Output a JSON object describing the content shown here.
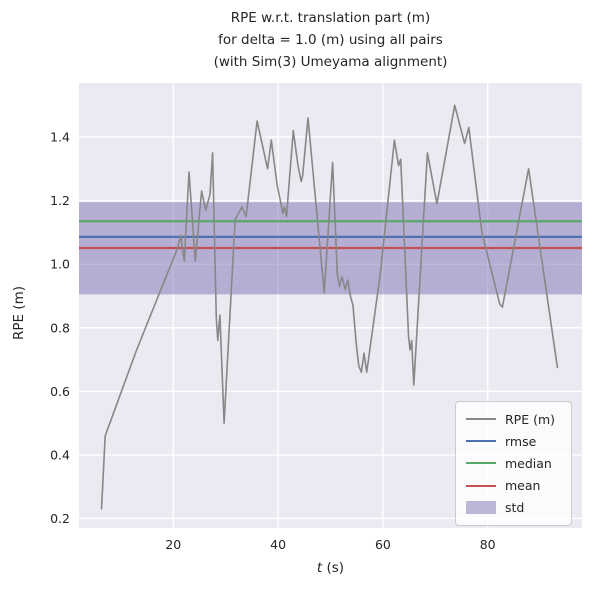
{
  "title": {
    "line1": "RPE w.r.t. translation part (m)",
    "line2": "for delta = 1.0 (m) using all pairs",
    "line3": "(with Sim(3) Umeyama alignment)"
  },
  "axes": {
    "ylabel": "RPE (m)",
    "xlabel_var": "t",
    "xlabel_unit": " (s)"
  },
  "colors": {
    "axes_bg": "#eaeaf2",
    "grid": "#ffffff",
    "text": "#262626",
    "rpe_line": "#878787",
    "rmse_line": "#4c72b0",
    "median_line": "#55a868",
    "mean_line": "#c44e52",
    "std_fill": "rgba(129,114,178,0.5)"
  },
  "chart_data": {
    "type": "line",
    "title": "RPE w.r.t. translation part (m) for delta = 1.0 (m) using all pairs (with Sim(3) Umeyama alignment)",
    "xlabel": "t (s)",
    "ylabel": "RPE (m)",
    "grid": true,
    "legend_position": "lower right",
    "xlim": [
      2,
      98
    ],
    "ylim": [
      0.17,
      1.57
    ],
    "xticks": [
      20,
      40,
      60,
      80
    ],
    "yticks": [
      0.2,
      0.4,
      0.6,
      0.8,
      1.0,
      1.2,
      1.4
    ],
    "stats": {
      "rmse": 1.086,
      "median": 1.135,
      "mean": 1.051,
      "std": 0.145
    },
    "hlines": [
      {
        "name": "rmse",
        "value": 1.086,
        "color": "#4c72b0"
      },
      {
        "name": "median",
        "value": 1.135,
        "color": "#55a868"
      },
      {
        "name": "mean",
        "value": 1.051,
        "color": "#c44e52"
      }
    ],
    "band": {
      "name": "std",
      "range": [
        0.905,
        1.195
      ],
      "color": "rgba(129,114,178,0.5)"
    },
    "series": [
      {
        "name": "RPE (m)",
        "color": "#878787",
        "x": [
          6.3,
          7.0,
          13.0,
          20.8,
          21.4,
          22.1,
          23.0,
          24.2,
          25.4,
          26.2,
          27.0,
          27.5,
          28.2,
          28.5,
          28.9,
          29.7,
          31.8,
          33.1,
          33.9,
          36.0,
          38.0,
          38.7,
          39.8,
          40.3,
          40.9,
          41.2,
          41.6,
          42.9,
          43.8,
          44.4,
          44.7,
          45.7,
          48.8,
          50.4,
          51.3,
          51.7,
          52.2,
          52.8,
          53.3,
          53.8,
          54.3,
          54.9,
          55.4,
          55.9,
          56.4,
          56.9,
          57.5,
          59.5,
          62.2,
          63.0,
          63.4,
          64.9,
          65.2,
          65.5,
          65.9,
          68.5,
          70.3,
          73.7,
          75.6,
          76.4,
          78.9,
          82.3,
          82.8,
          87.8,
          93.3
        ],
        "y": [
          0.23,
          0.46,
          0.73,
          1.05,
          1.09,
          1.01,
          1.29,
          1.01,
          1.23,
          1.17,
          1.22,
          1.35,
          0.83,
          0.76,
          0.84,
          0.5,
          1.14,
          1.18,
          1.15,
          1.45,
          1.3,
          1.39,
          1.25,
          1.21,
          1.16,
          1.18,
          1.15,
          1.42,
          1.31,
          1.26,
          1.28,
          1.46,
          0.91,
          1.32,
          0.97,
          0.93,
          0.96,
          0.92,
          0.95,
          0.9,
          0.87,
          0.75,
          0.68,
          0.66,
          0.72,
          0.66,
          0.73,
          0.97,
          1.39,
          1.31,
          1.33,
          0.77,
          0.73,
          0.76,
          0.62,
          1.35,
          1.19,
          1.5,
          1.38,
          1.43,
          1.1,
          0.875,
          0.865,
          1.3,
          0.675
        ]
      }
    ]
  },
  "legend": {
    "items": [
      {
        "label": "RPE (m)",
        "swatch": "line",
        "color": "#878787"
      },
      {
        "label": "rmse",
        "swatch": "line",
        "color": "#4c72b0"
      },
      {
        "label": "median",
        "swatch": "line",
        "color": "#55a868"
      },
      {
        "label": "mean",
        "swatch": "line",
        "color": "#c44e52"
      },
      {
        "label": "std",
        "swatch": "patch",
        "color": "rgba(129,114,178,0.5)"
      }
    ]
  }
}
